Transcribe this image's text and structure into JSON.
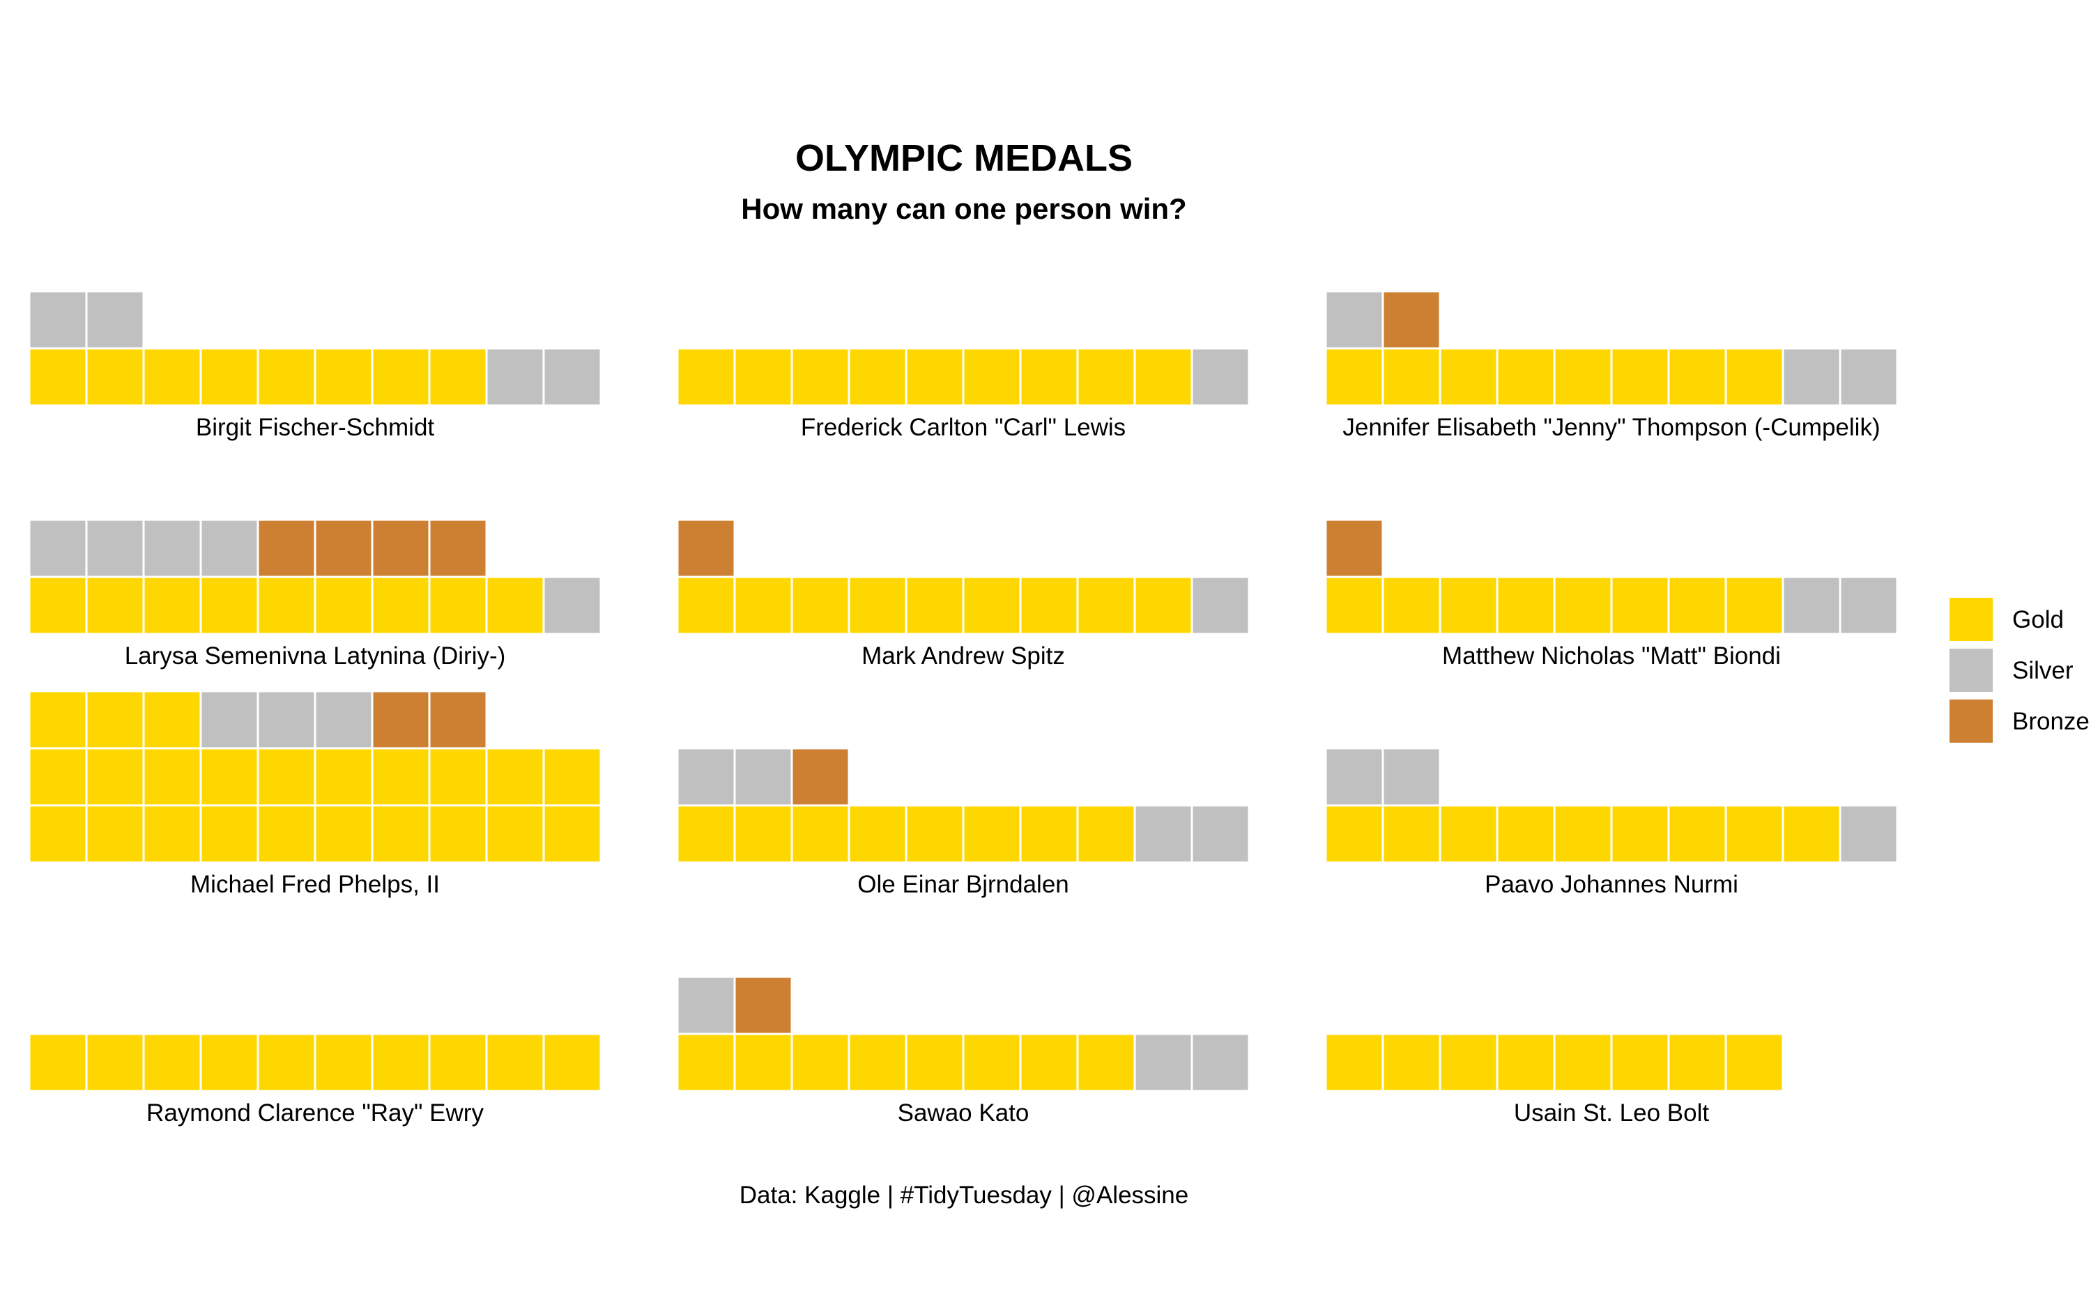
{
  "chart_data": {
    "type": "waffle",
    "title": "OLYMPIC MEDALS",
    "subtitle": "How many can one person win?",
    "caption": "Data: Kaggle | #TidyTuesday | @Alessine",
    "legend": {
      "placement": "right",
      "items": [
        {
          "name": "Gold",
          "color": "#FFD700"
        },
        {
          "name": "Silver",
          "color": "#C0C0C0"
        },
        {
          "name": "Bronze",
          "color": "#CD7F32"
        }
      ]
    },
    "units_per_row": 10,
    "panels": [
      {
        "name": "Birgit Fischer-Schmidt",
        "gold": 8,
        "silver": 4,
        "bronze": 0
      },
      {
        "name": "Frederick Carlton \"Carl\" Lewis",
        "gold": 9,
        "silver": 1,
        "bronze": 0
      },
      {
        "name": "Jennifer Elisabeth \"Jenny\" Thompson (-Cumpelik)",
        "gold": 8,
        "silver": 3,
        "bronze": 1
      },
      {
        "name": "Larysa Semenivna Latynina (Diriy-)",
        "gold": 9,
        "silver": 5,
        "bronze": 4
      },
      {
        "name": "Mark Andrew Spitz",
        "gold": 9,
        "silver": 1,
        "bronze": 1
      },
      {
        "name": "Matthew Nicholas \"Matt\" Biondi",
        "gold": 8,
        "silver": 2,
        "bronze": 1
      },
      {
        "name": "Michael Fred Phelps, II",
        "gold": 23,
        "silver": 3,
        "bronze": 2
      },
      {
        "name": "Ole Einar Bjrndalen",
        "gold": 8,
        "silver": 4,
        "bronze": 1
      },
      {
        "name": "Paavo Johannes Nurmi",
        "gold": 9,
        "silver": 3,
        "bronze": 0
      },
      {
        "name": "Raymond Clarence \"Ray\" Ewry",
        "gold": 10,
        "silver": 0,
        "bronze": 0
      },
      {
        "name": "Sawao Kato",
        "gold": 8,
        "silver": 3,
        "bronze": 1
      },
      {
        "name": "Usain St. Leo Bolt",
        "gold": 8,
        "silver": 0,
        "bronze": 0
      }
    ]
  }
}
